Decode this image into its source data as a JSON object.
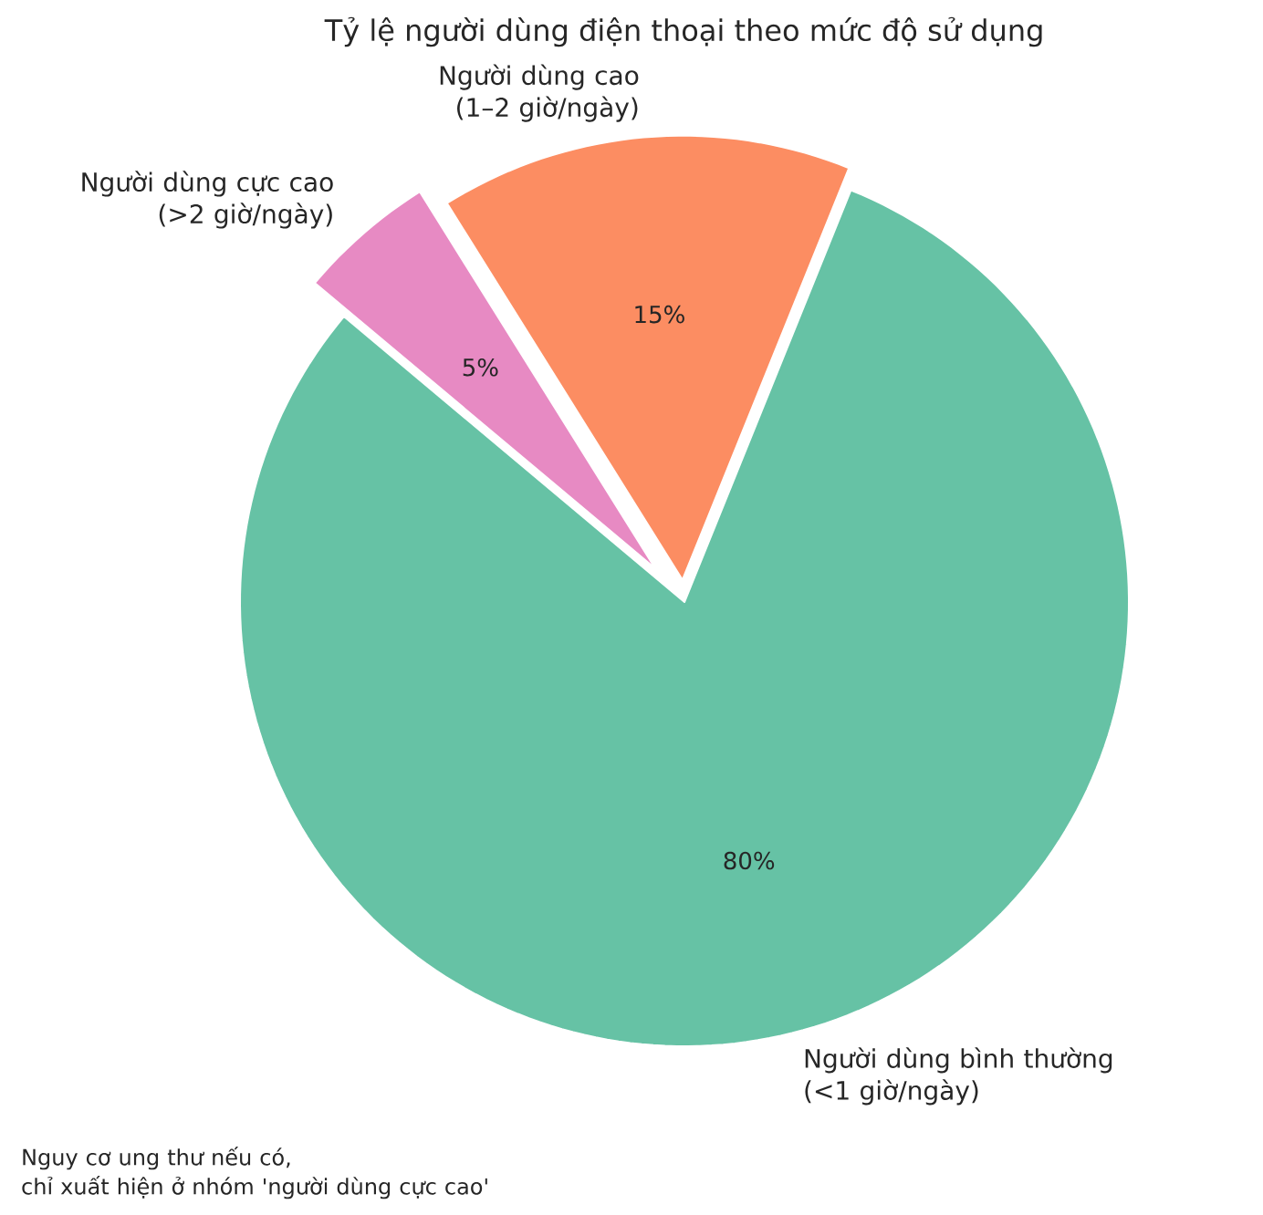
{
  "chart_data": {
    "type": "pie",
    "title": "Tỷ lệ người dùng điện thoại theo mức độ sử dụng",
    "categories": [
      "Người dùng bình thường\n(<1 giờ/ngày)",
      "Người dùng cao\n(1–2 giờ/ngày)",
      "Người dùng cực cao\n(>2 giờ/ngày)"
    ],
    "values": [
      80,
      15,
      5
    ],
    "colors": [
      "#66c2a5",
      "#fc8d62",
      "#e78ac3"
    ],
    "value_labels": [
      "80%",
      "15%",
      "5%"
    ],
    "annotations": [
      "Nguy cơ ung thư nếu có,\nchỉ xuất hiện ở nhóm 'người dùng cực cao'"
    ]
  }
}
